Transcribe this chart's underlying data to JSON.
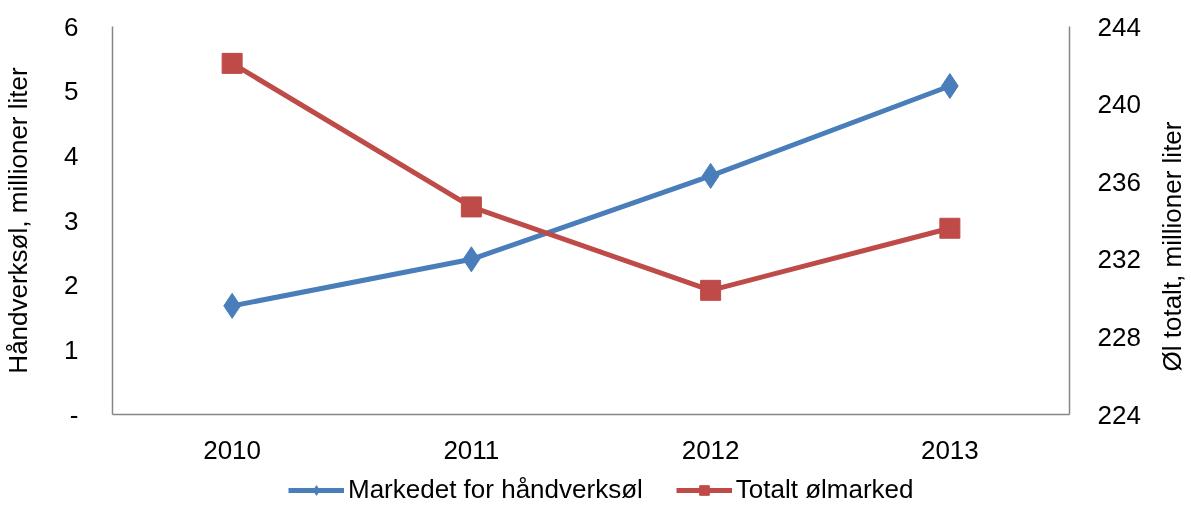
{
  "chart_data": {
    "type": "line",
    "categories": [
      "2010",
      "2011",
      "2012",
      "2013"
    ],
    "ylabel": "Håndverksøl, millioner liter",
    "y2label": "Øl totalt, millioner liter",
    "ylim": [
      0,
      6
    ],
    "yticks": [
      {
        "value": 0,
        "label": "-"
      },
      1,
      2,
      3,
      4,
      5,
      6
    ],
    "y2lim": [
      224,
      244
    ],
    "y2ticks": [
      224,
      228,
      232,
      236,
      240,
      244
    ],
    "grid": false,
    "legend": "bottom",
    "series": [
      {
        "name": "Markedet for håndverksøl",
        "color": "#4a7ebb",
        "marker": "diamond",
        "values": [
          1.68,
          2.4,
          3.69,
          5.08
        ]
      },
      {
        "name": "Totalt ølmarked",
        "color": "#be4b48",
        "marker": "square",
        "axis": "y2",
        "values": [
          242.1,
          234.7,
          230.4,
          233.6
        ]
      }
    ]
  }
}
